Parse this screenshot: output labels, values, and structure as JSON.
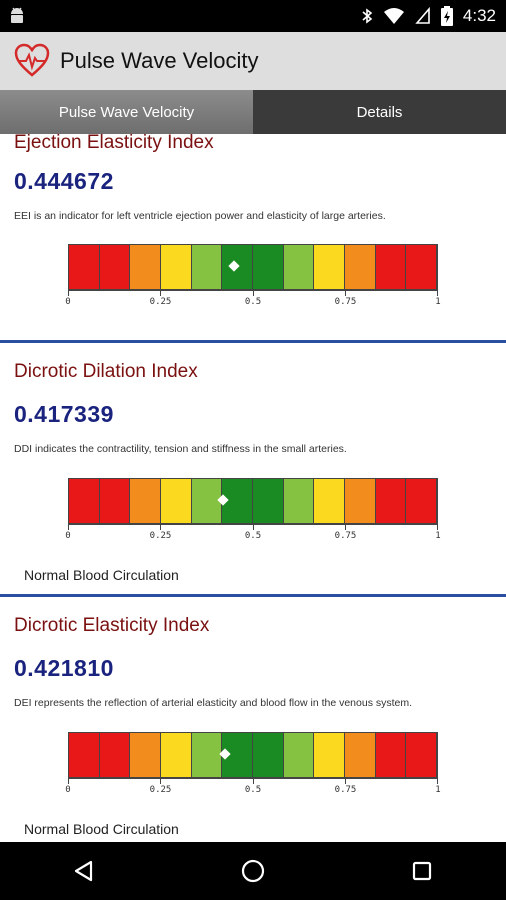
{
  "status_bar": {
    "time": "4:32",
    "icons": [
      "android-icon",
      "bluetooth-icon",
      "wifi-icon",
      "no-sim-icon",
      "battery-charging-icon"
    ]
  },
  "app": {
    "title": "Pulse Wave Velocity",
    "logo": "heart-pulse-icon"
  },
  "tabs": [
    {
      "label": "Pulse Wave Velocity",
      "active": true
    },
    {
      "label": "Details",
      "active": false
    }
  ],
  "scale": {
    "tick_labels": [
      "0",
      "0.25",
      "0.5",
      "0.75",
      "1"
    ],
    "segment_colors": [
      "#e81818",
      "#e81818",
      "#f28c1c",
      "#fbd91e",
      "#86c242",
      "#1a8a22",
      "#1a8a22",
      "#86c242",
      "#fbd91e",
      "#f28c1c",
      "#e81818",
      "#e81818"
    ]
  },
  "cards": [
    {
      "title": "Ejection Elasticity Index",
      "value": "0.444672",
      "marker_value": 0.444672,
      "description": "EEI is an indicator for left ventricle ejection power and elasticity of large arteries.",
      "status": ""
    },
    {
      "title": "Dicrotic Dilation Index",
      "value": "0.417339",
      "marker_value": 0.417339,
      "description": "DDI indicates the contractility, tension and stiffness in the small arteries.",
      "status": "Normal Blood Circulation"
    },
    {
      "title": "Dicrotic Elasticity Index",
      "value": "0.421810",
      "marker_value": 0.42181,
      "description": "DEI represents the reflection of arterial elasticity and blood flow in the venous system.",
      "status": "Normal Blood Circulation"
    }
  ],
  "nav": {
    "back": "back-triangle-icon",
    "home": "home-circle-icon",
    "recents": "recents-square-icon"
  }
}
